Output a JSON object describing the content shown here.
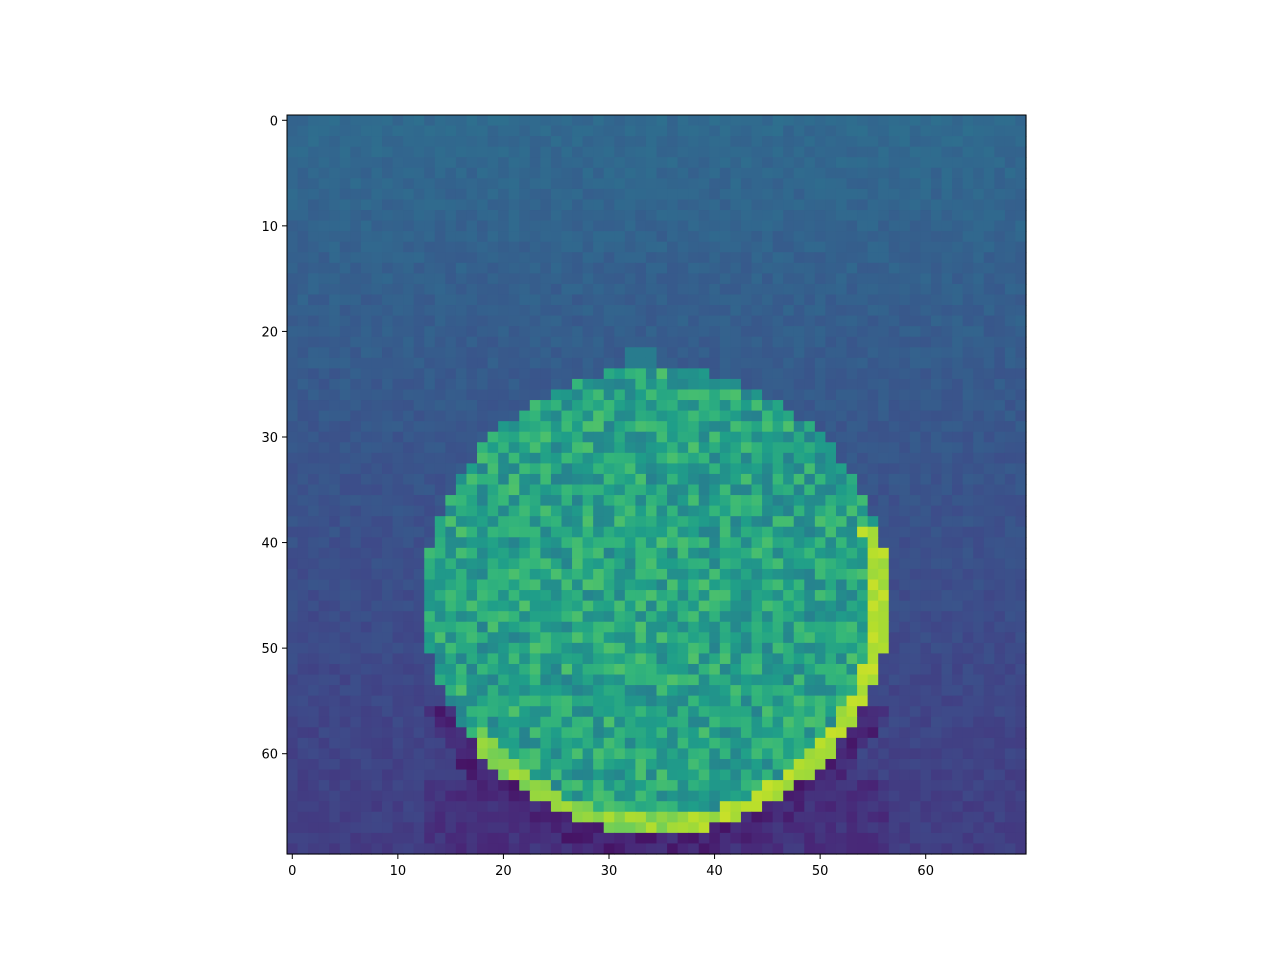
{
  "chart_data": {
    "type": "heatmap",
    "title": "",
    "xlabel": "",
    "ylabel": "",
    "rows": 70,
    "cols": 70,
    "xlim": [
      -0.5,
      69.5
    ],
    "ylim": [
      69.5,
      -0.5
    ],
    "x_ticks": [
      0,
      10,
      20,
      30,
      40,
      50,
      60
    ],
    "y_ticks": [
      0,
      10,
      20,
      30,
      40,
      50,
      60
    ],
    "x_tick_labels": [
      "0",
      "10",
      "20",
      "30",
      "40",
      "50",
      "60"
    ],
    "y_tick_labels": [
      "0",
      "10",
      "20",
      "30",
      "40",
      "50",
      "60"
    ],
    "colormap": "viridis",
    "value_range": [
      0,
      1
    ],
    "grid": false,
    "legend": "none",
    "background_value": 0.3,
    "background_gradient": {
      "top": 0.34,
      "upper_middle": 0.27,
      "bottom": 0.18
    },
    "disc": {
      "center_col": 34.5,
      "center_row": 45.5,
      "radius": 22,
      "mean_value": 0.58,
      "bright_rim_value": 0.92,
      "dark_shadow_value": 0.05
    }
  }
}
